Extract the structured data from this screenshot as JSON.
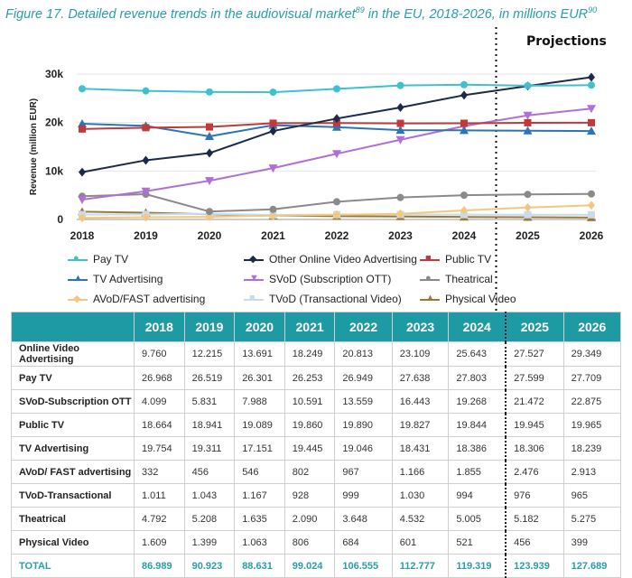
{
  "title": {
    "main": "Figure 17. Detailed revenue trends in the audiovisual market",
    "sup1": "89",
    "rest": " in the EU, 2018-2026, in millions EUR",
    "sup2": "90"
  },
  "projections_label": "Projections",
  "chart_data": {
    "type": "line",
    "ylabel": "Revenue (million EUR)",
    "ylim": [
      0,
      30000
    ],
    "yticks": [
      0,
      10000,
      20000,
      30000
    ],
    "ytick_labels": [
      "0",
      "10k",
      "20k",
      "30k"
    ],
    "x": [
      "2018",
      "2019",
      "2020",
      "2021",
      "2022",
      "2023",
      "2024",
      "2025",
      "2026"
    ],
    "projection_start": "2025",
    "series": [
      {
        "name": "Pay TV",
        "color": "#3ec1cf",
        "marker": "circle",
        "values": [
          26968,
          26519,
          26301,
          26253,
          26949,
          27638,
          27803,
          27599,
          27709
        ]
      },
      {
        "name": "Other Online Video Advertising",
        "color": "#1b2a4a",
        "marker": "diamond",
        "values": [
          9760,
          12215,
          13691,
          18249,
          20813,
          23109,
          25643,
          27527,
          29349
        ]
      },
      {
        "name": "Public TV",
        "color": "#c0393b",
        "marker": "square",
        "values": [
          18664,
          18941,
          19089,
          19860,
          19890,
          19827,
          19844,
          19945,
          19965
        ]
      },
      {
        "name": "TV Advertising",
        "color": "#2a74b8",
        "marker": "triangle",
        "values": [
          19754,
          19311,
          17151,
          19445,
          19046,
          18431,
          18386,
          18306,
          18239
        ]
      },
      {
        "name": "SVoD (Subscription OTT)",
        "color": "#b06fd6",
        "marker": "triangle-down",
        "values": [
          4099,
          5831,
          7988,
          10591,
          13559,
          16443,
          19268,
          21472,
          22875
        ]
      },
      {
        "name": "Theatrical",
        "color": "#8a8a8a",
        "marker": "circle",
        "values": [
          4792,
          5208,
          1635,
          2090,
          3648,
          4532,
          5005,
          5182,
          5275
        ]
      },
      {
        "name": "AVoD/FAST advertising",
        "color": "#f5c77e",
        "marker": "diamond",
        "values": [
          332,
          456,
          546,
          802,
          967,
          1166,
          1855,
          2476,
          2913
        ]
      },
      {
        "name": "TVoD (Transactional Video)",
        "color": "#c8dcee",
        "marker": "square",
        "values": [
          1011,
          1043,
          1167,
          928,
          999,
          1030,
          994,
          976,
          965
        ]
      },
      {
        "name": "Physical Video",
        "color": "#9a7a3a",
        "marker": "triangle",
        "values": [
          1609,
          1399,
          1063,
          806,
          684,
          601,
          521,
          456,
          399
        ]
      }
    ]
  },
  "table": {
    "header": [
      "",
      "2018",
      "2019",
      "2020",
      "2021",
      "2022",
      "2023",
      "2024",
      "2025",
      "2026"
    ],
    "rows": [
      [
        "Online Video Advertising",
        "9.760",
        "12.215",
        "13.691",
        "18.249",
        "20.813",
        "23.109",
        "25.643",
        "27.527",
        "29.349"
      ],
      [
        "Pay TV",
        "26.968",
        "26.519",
        "26.301",
        "26.253",
        "26.949",
        "27.638",
        "27.803",
        "27.599",
        "27.709"
      ],
      [
        "SVoD-Subscription OTT",
        "4.099",
        "5.831",
        "7.988",
        "10.591",
        "13.559",
        "16.443",
        "19.268",
        "21.472",
        "22.875"
      ],
      [
        "Public TV",
        "18.664",
        "18.941",
        "19.089",
        "19.860",
        "19.890",
        "19.827",
        "19.844",
        "19.945",
        "19.965"
      ],
      [
        "TV Advertising",
        "19.754",
        "19.311",
        "17.151",
        "19.445",
        "19.046",
        "18.431",
        "18.386",
        "18.306",
        "18.239"
      ],
      [
        "AVoD/ FAST advertising",
        "332",
        "456",
        "546",
        "802",
        "967",
        "1.166",
        "1.855",
        "2.476",
        "2.913"
      ],
      [
        "TVoD-Transactional",
        "1.011",
        "1.043",
        "1.167",
        "928",
        "999",
        "1.030",
        "994",
        "976",
        "965"
      ],
      [
        "Theatrical",
        "4.792",
        "5.208",
        "1.635",
        "2.090",
        "3.648",
        "4.532",
        "5.005",
        "5.182",
        "5.275"
      ],
      [
        "Physical Video",
        "1.609",
        "1.399",
        "1.063",
        "806",
        "684",
        "601",
        "521",
        "456",
        "399"
      ],
      [
        "TOTAL",
        "86.989",
        "90.923",
        "88.631",
        "99.024",
        "106.555",
        "112.777",
        "119.319",
        "123.939",
        "127.689"
      ]
    ]
  }
}
